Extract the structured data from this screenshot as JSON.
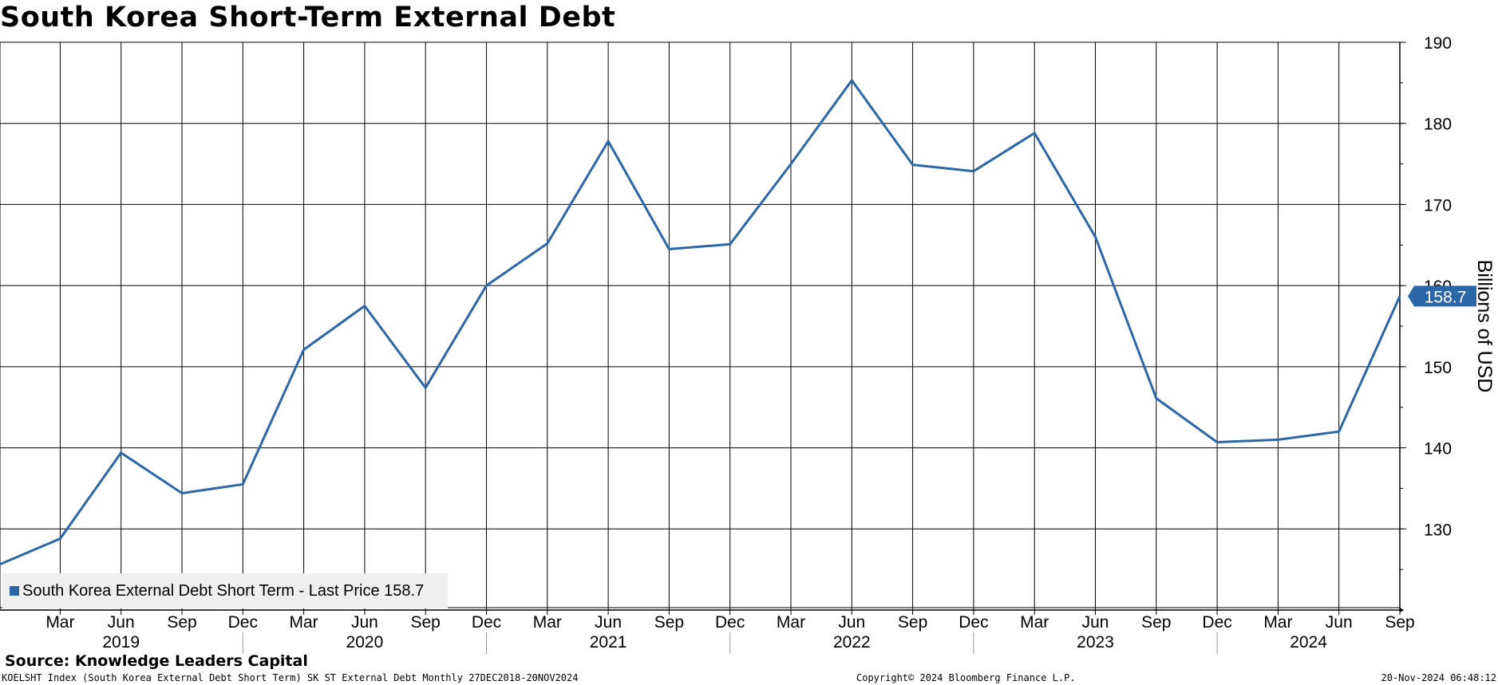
{
  "chart_data": {
    "type": "line",
    "title": "South Korea Short-Term External Debt",
    "ylabel": "Billions of USD",
    "ylim": [
      120,
      190
    ],
    "y_ticks": [
      130,
      140,
      150,
      160,
      170,
      180,
      190
    ],
    "x_tick_labels": [
      "Mar",
      "Jun",
      "Sep",
      "Dec",
      "Mar",
      "Jun",
      "Sep",
      "Dec",
      "Mar",
      "Jun",
      "Sep",
      "Dec",
      "Mar",
      "Jun",
      "Sep",
      "Dec",
      "Mar",
      "Jun",
      "Sep",
      "Dec",
      "Mar",
      "Jun",
      "Sep"
    ],
    "year_labels": [
      "2019",
      "2020",
      "2021",
      "2022",
      "2023",
      "2024"
    ],
    "grid": true,
    "legend_position": "bottom-left",
    "last_value_label": "158.7",
    "series": [
      {
        "name": "South Korea External Debt Short Term - Last Price 158.7",
        "color": "#2b67a6",
        "x": [
          "Dec 2018",
          "Mar 2019",
          "Jun 2019",
          "Sep 2019",
          "Dec 2019",
          "Mar 2020",
          "Jun 2020",
          "Sep 2020",
          "Dec 2020",
          "Mar 2021",
          "Jun 2021",
          "Sep 2021",
          "Dec 2021",
          "Mar 2022",
          "Jun 2022",
          "Sep 2022",
          "Dec 2022",
          "Mar 2023",
          "Jun 2023",
          "Sep 2023",
          "Dec 2023",
          "Mar 2024",
          "Jun 2024",
          "Sep 2024"
        ],
        "values": [
          125.6,
          128.8,
          139.4,
          134.4,
          135.5,
          152.1,
          157.5,
          147.4,
          160.0,
          165.2,
          177.8,
          164.5,
          165.1,
          175.0,
          185.3,
          174.9,
          174.1,
          178.8,
          166.0,
          146.1,
          140.7,
          141.0,
          142.0,
          158.7
        ]
      }
    ]
  },
  "source": "Source: Knowledge Leaders Capital",
  "footer": {
    "left": "KOELSHT Index (South Korea External Debt Short Term) SK ST External Debt  Monthly 27DEC2018-20NOV2024",
    "middle": "Copyright© 2024 Bloomberg Finance L.P.",
    "right": "20-Nov-2024 06:48:12"
  }
}
